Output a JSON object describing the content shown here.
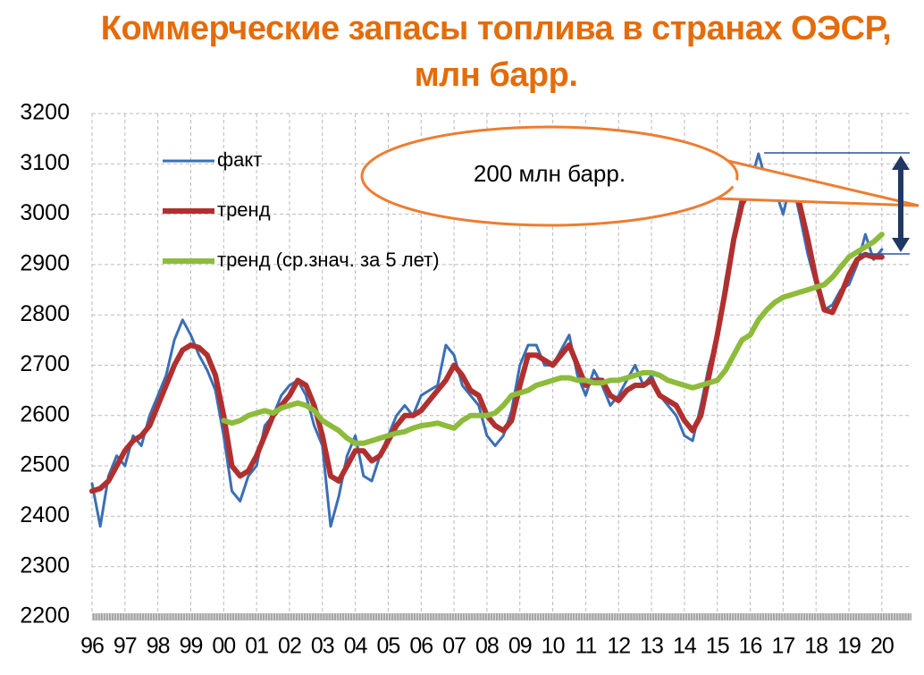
{
  "chart_data": {
    "type": "line",
    "title": "Коммерческие запасы топлива в странах ОЭСР, млн барр.",
    "annotation": "200 млн барр.",
    "x": [
      1996,
      1996.25,
      1996.5,
      1996.75,
      1997,
      1997.25,
      1997.5,
      1997.75,
      1998,
      1998.25,
      1998.5,
      1998.75,
      1999,
      1999.25,
      1999.5,
      1999.75,
      2000,
      2000.25,
      2000.5,
      2000.75,
      2001,
      2001.25,
      2001.5,
      2001.75,
      2002,
      2002.25,
      2002.5,
      2002.75,
      2003,
      2003.25,
      2003.5,
      2003.75,
      2004,
      2004.25,
      2004.5,
      2004.75,
      2005,
      2005.25,
      2005.5,
      2005.75,
      2006,
      2006.25,
      2006.5,
      2006.75,
      2007,
      2007.25,
      2007.5,
      2007.75,
      2008,
      2008.25,
      2008.5,
      2008.75,
      2009,
      2009.25,
      2009.5,
      2009.75,
      2010,
      2010.25,
      2010.5,
      2010.75,
      2011,
      2011.25,
      2011.5,
      2011.75,
      2012,
      2012.25,
      2012.5,
      2012.75,
      2013,
      2013.25,
      2013.5,
      2013.75,
      2014,
      2014.25,
      2014.5,
      2014.75,
      2015,
      2015.25,
      2015.5,
      2015.75,
      2016,
      2016.25,
      2016.5,
      2016.75,
      2017,
      2017.25,
      2017.5,
      2017.75,
      2018,
      2018.25,
      2018.5,
      2018.75,
      2019,
      2019.25,
      2019.5,
      2019.75,
      2020
    ],
    "series": [
      {
        "name": "факт",
        "color": "#3a6fb5",
        "width": 3,
        "values": [
          2465,
          2380,
          2480,
          2520,
          2500,
          2560,
          2540,
          2600,
          2640,
          2680,
          2750,
          2790,
          2760,
          2720,
          2690,
          2650,
          2560,
          2450,
          2430,
          2480,
          2500,
          2580,
          2600,
          2640,
          2660,
          2670,
          2640,
          2580,
          2540,
          2380,
          2440,
          2520,
          2560,
          2480,
          2470,
          2520,
          2560,
          2600,
          2620,
          2600,
          2640,
          2650,
          2660,
          2740,
          2720,
          2660,
          2640,
          2620,
          2560,
          2540,
          2560,
          2610,
          2700,
          2740,
          2740,
          2700,
          2700,
          2730,
          2760,
          2680,
          2640,
          2690,
          2660,
          2620,
          2640,
          2670,
          2700,
          2660,
          2680,
          2640,
          2620,
          2600,
          2560,
          2550,
          2620,
          2700,
          2760,
          2870,
          2960,
          3040,
          3060,
          3120,
          3060,
          3050,
          3000,
          3070,
          3000,
          2920,
          2860,
          2810,
          2820,
          2850,
          2860,
          2900,
          2960,
          2910,
          2930
        ]
      },
      {
        "name": "тренд",
        "color": "#b03030",
        "width": 6,
        "values": [
          2450,
          2455,
          2470,
          2500,
          2530,
          2550,
          2560,
          2580,
          2620,
          2660,
          2700,
          2730,
          2740,
          2735,
          2720,
          2680,
          2600,
          2500,
          2480,
          2490,
          2520,
          2560,
          2600,
          2620,
          2640,
          2670,
          2660,
          2620,
          2560,
          2480,
          2470,
          2500,
          2530,
          2530,
          2510,
          2520,
          2550,
          2580,
          2600,
          2600,
          2610,
          2630,
          2650,
          2670,
          2700,
          2680,
          2650,
          2640,
          2600,
          2580,
          2570,
          2590,
          2660,
          2720,
          2720,
          2710,
          2700,
          2720,
          2740,
          2700,
          2660,
          2670,
          2670,
          2640,
          2630,
          2650,
          2660,
          2660,
          2670,
          2640,
          2630,
          2620,
          2590,
          2570,
          2600,
          2680,
          2760,
          2850,
          2950,
          3020,
          3050,
          3060,
          3055,
          3060,
          3065,
          3050,
          3020,
          2950,
          2870,
          2810,
          2805,
          2840,
          2880,
          2910,
          2920,
          2915,
          2915
        ]
      },
      {
        "name": "тренд (ср.знач. за 5 лет)",
        "color": "#8dbb3c",
        "width": 6,
        "values": [
          null,
          null,
          null,
          null,
          null,
          null,
          null,
          null,
          null,
          null,
          null,
          null,
          null,
          null,
          null,
          null,
          2590,
          2585,
          2590,
          2600,
          2605,
          2610,
          2605,
          2615,
          2620,
          2625,
          2620,
          2610,
          2590,
          2580,
          2570,
          2555,
          2545,
          2545,
          2550,
          2555,
          2560,
          2565,
          2568,
          2575,
          2580,
          2582,
          2585,
          2580,
          2575,
          2590,
          2600,
          2600,
          2600,
          2605,
          2620,
          2640,
          2645,
          2650,
          2660,
          2665,
          2670,
          2675,
          2675,
          2670,
          2670,
          2665,
          2665,
          2670,
          2670,
          2675,
          2680,
          2685,
          2685,
          2680,
          2670,
          2665,
          2660,
          2655,
          2660,
          2665,
          2670,
          2690,
          2720,
          2750,
          2760,
          2790,
          2810,
          2825,
          2835,
          2840,
          2845,
          2850,
          2855,
          2860,
          2875,
          2895,
          2915,
          2925,
          2935,
          2945,
          2960
        ]
      }
    ],
    "xlim": [
      1996,
      2020.9
    ],
    "xticks": [
      {
        "value": 1996,
        "label": "96"
      },
      {
        "value": 1997,
        "label": "97"
      },
      {
        "value": 1998,
        "label": "98"
      },
      {
        "value": 1999,
        "label": "99"
      },
      {
        "value": 2000,
        "label": "00"
      },
      {
        "value": 2001,
        "label": "01"
      },
      {
        "value": 2002,
        "label": "02"
      },
      {
        "value": 2003,
        "label": "03"
      },
      {
        "value": 2004,
        "label": "04"
      },
      {
        "value": 2005,
        "label": "05"
      },
      {
        "value": 2006,
        "label": "06"
      },
      {
        "value": 2007,
        "label": "07"
      },
      {
        "value": 2008,
        "label": "08"
      },
      {
        "value": 2009,
        "label": "09"
      },
      {
        "value": 2010,
        "label": "10"
      },
      {
        "value": 2011,
        "label": "11"
      },
      {
        "value": 2012,
        "label": "12"
      },
      {
        "value": 2013,
        "label": "13"
      },
      {
        "value": 2014,
        "label": "14"
      },
      {
        "value": 2015,
        "label": "15"
      },
      {
        "value": 2016,
        "label": "16"
      },
      {
        "value": 2017,
        "label": "17"
      },
      {
        "value": 2018,
        "label": "18"
      },
      {
        "value": 2019,
        "label": "19"
      },
      {
        "value": 2020,
        "label": "20"
      }
    ],
    "ylim": [
      2200,
      3200
    ],
    "yticks": [
      2200,
      2300,
      2400,
      2500,
      2600,
      2700,
      2800,
      2900,
      3000,
      3100,
      3200
    ],
    "grid": true,
    "legend": "upper left"
  }
}
